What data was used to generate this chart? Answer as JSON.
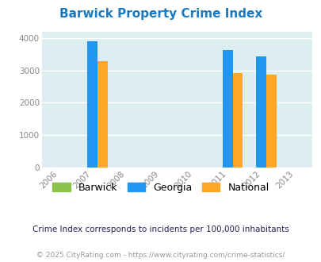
{
  "title": "Barwick Property Crime Index",
  "title_color": "#1a7abf",
  "bar_years": [
    2007,
    2011,
    2012
  ],
  "georgia_values": [
    3900,
    3620,
    3430
  ],
  "national_values": [
    3280,
    2920,
    2860
  ],
  "barwick_values": [
    0,
    0,
    0
  ],
  "color_barwick": "#8bc34a",
  "color_georgia": "#2196f3",
  "color_national": "#ffa726",
  "plot_bg_color": "#ddeef0",
  "ylim": [
    0,
    4200
  ],
  "yticks": [
    0,
    1000,
    2000,
    3000,
    4000
  ],
  "xtick_years": [
    2006,
    2007,
    2008,
    2009,
    2010,
    2011,
    2012,
    2013
  ],
  "bar_width": 0.3,
  "legend_labels": [
    "Barwick",
    "Georgia",
    "National"
  ],
  "footnote1": "Crime Index corresponds to incidents per 100,000 inhabitants",
  "footnote2": "© 2025 CityRating.com - https://www.cityrating.com/crime-statistics/",
  "footnote1_color": "#222255",
  "footnote2_color": "#999999",
  "grid_color": "#ffffff",
  "tick_label_color": "#888888"
}
